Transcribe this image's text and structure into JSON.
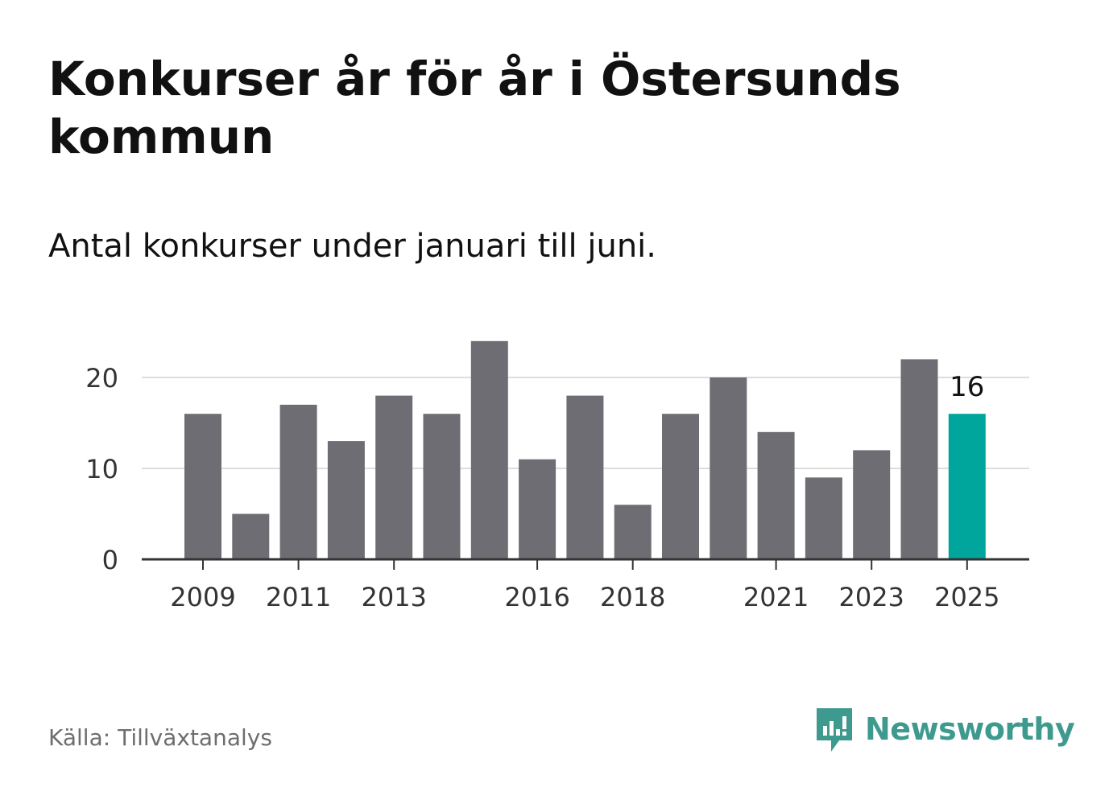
{
  "title": "Konkurser år för år i Östersunds kommun",
  "subtitle": "Antal konkurser under januari till juni.",
  "source": "Källa: Tillväxtanalys",
  "brand": "Newsworthy",
  "colors": {
    "bar": "#6e6d73",
    "highlight": "#00a59b",
    "grid": "#dddddd",
    "axis": "#333333",
    "brand": "#3e9a8e"
  },
  "chart_data": {
    "type": "bar",
    "categories": [
      "2009",
      "2010",
      "2011",
      "2012",
      "2013",
      "2014",
      "2015",
      "2016",
      "2017",
      "2018",
      "2019",
      "2020",
      "2021",
      "2022",
      "2023",
      "2024",
      "2025"
    ],
    "values": [
      16,
      5,
      17,
      13,
      18,
      16,
      24,
      11,
      18,
      6,
      16,
      20,
      14,
      9,
      12,
      22,
      16
    ],
    "highlight_index": 16,
    "data_labels": [
      {
        "index": 16,
        "text": "16"
      }
    ],
    "x_tick_labels": [
      "2009",
      "2011",
      "2013",
      "2016",
      "2018",
      "2021",
      "2023",
      "2025"
    ],
    "y_ticks": [
      0,
      10,
      20
    ],
    "ylim": [
      0,
      25
    ],
    "grid": true,
    "legend": "none"
  }
}
